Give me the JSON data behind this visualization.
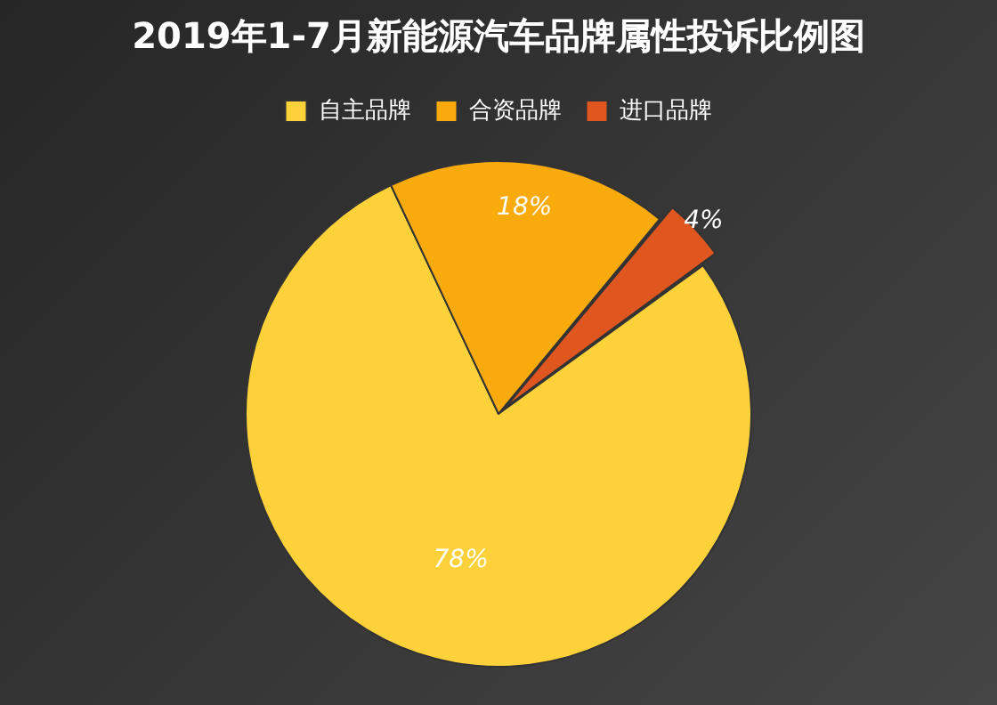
{
  "chart_data": {
    "type": "pie",
    "title": "2019年1-7月新能源汽车品牌属性投诉比例图",
    "categories": [
      "自主品牌",
      "合资品牌",
      "进口品牌"
    ],
    "values": [
      78,
      18,
      4
    ],
    "colors": [
      "#fdd13a",
      "#f9ab0d",
      "#e0561f"
    ],
    "value_labels": [
      "78%",
      "18%",
      "4%"
    ],
    "legend": "top"
  }
}
